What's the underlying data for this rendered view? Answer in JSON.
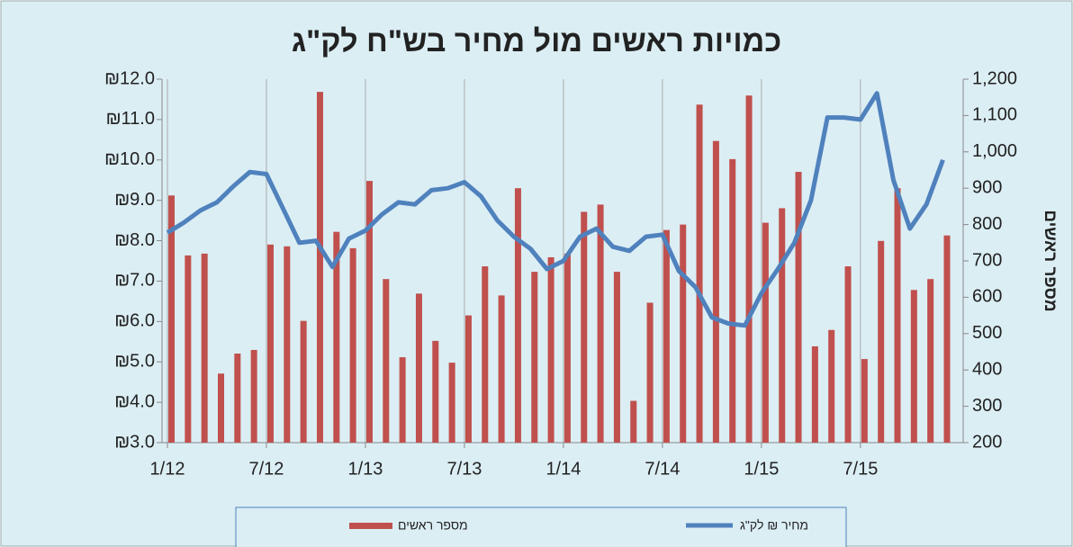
{
  "chart_data": {
    "type": "combo",
    "title": "כמויות ראשים מול מחיר בש\"ח לק\"ג",
    "y2_label": "מספר ראשים",
    "categories": [
      "1/12",
      null,
      null,
      null,
      null,
      null,
      "7/12",
      null,
      null,
      null,
      null,
      null,
      "1/13",
      null,
      null,
      null,
      null,
      null,
      "7/13",
      null,
      null,
      null,
      null,
      null,
      "1/14",
      null,
      null,
      null,
      null,
      null,
      "7/14",
      null,
      null,
      null,
      null,
      null,
      "1/15",
      null,
      null,
      null,
      null,
      null,
      "7/15",
      null,
      null,
      null,
      null,
      null
    ],
    "series": [
      {
        "name": "מספר ראשים",
        "type": "bar",
        "axis": "y2",
        "color": "#c0504d",
        "values": [
          880,
          715,
          720,
          390,
          445,
          455,
          745,
          740,
          535,
          1165,
          780,
          735,
          920,
          650,
          435,
          610,
          480,
          420,
          550,
          685,
          605,
          900,
          670,
          710,
          720,
          835,
          855,
          670,
          315,
          585,
          785,
          800,
          1130,
          1030,
          980,
          1155,
          805,
          845,
          945,
          465,
          510,
          685,
          430,
          755,
          900,
          620,
          650,
          770
        ]
      },
      {
        "name": "מחיר ₪ לק\"ג",
        "type": "line",
        "axis": "y",
        "color": "#4f81bd",
        "values": [
          8.2,
          8.45,
          8.75,
          8.95,
          9.35,
          9.7,
          9.65,
          8.8,
          7.95,
          8.0,
          7.35,
          8.05,
          8.25,
          8.65,
          8.95,
          8.9,
          9.25,
          9.3,
          9.45,
          9.1,
          8.5,
          8.1,
          7.8,
          7.3,
          7.5,
          8.1,
          8.3,
          7.85,
          7.75,
          8.1,
          8.15,
          7.25,
          6.85,
          6.1,
          5.95,
          5.9,
          6.7,
          7.3,
          7.95,
          9.0,
          11.05,
          11.05,
          11.0,
          11.65,
          9.5,
          8.3,
          8.9,
          10.0
        ]
      }
    ],
    "ylim": [
      3,
      12
    ],
    "yticks": [
      {
        "value": 3,
        "label": "₪3.0"
      },
      {
        "value": 4,
        "label": "₪4.0"
      },
      {
        "value": 5,
        "label": "₪5.0"
      },
      {
        "value": 6,
        "label": "₪6.0"
      },
      {
        "value": 7,
        "label": "₪7.0"
      },
      {
        "value": 8,
        "label": "₪8.0"
      },
      {
        "value": 9,
        "label": "₪9.0"
      },
      {
        "value": 10,
        "label": "₪10.0"
      },
      {
        "value": 11,
        "label": "₪11.0"
      },
      {
        "value": 12,
        "label": "₪12.0"
      }
    ],
    "y2lim": [
      200,
      1200
    ],
    "y2ticks": [
      200,
      300,
      400,
      500,
      600,
      700,
      800,
      900,
      {
        "value": 1000,
        "label": "1,000"
      },
      {
        "value": 1100,
        "label": "1,100"
      },
      {
        "value": 1200,
        "label": "1,200"
      }
    ],
    "xgrid": true,
    "legend": "bottom"
  }
}
